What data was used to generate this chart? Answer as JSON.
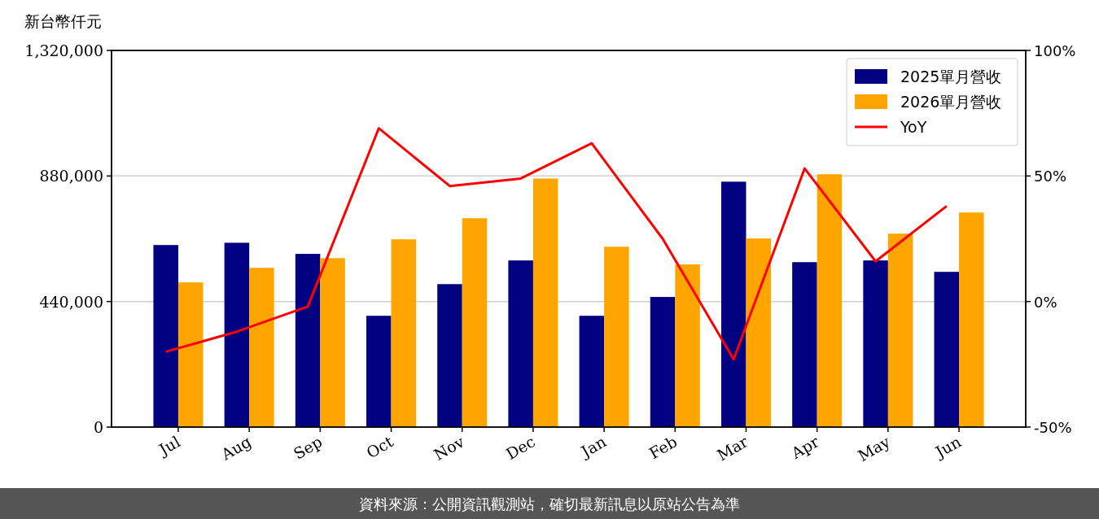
{
  "chart_data": {
    "type": "bar",
    "ylabel": "新台幣仟元",
    "categories": [
      "Jul",
      "Aug",
      "Sep",
      "Oct",
      "Nov",
      "Dec",
      "Jan",
      "Feb",
      "Mar",
      "Apr",
      "May",
      "Jun"
    ],
    "series": [
      {
        "name": "2025單月營收",
        "color": "#000080",
        "values": [
          638000,
          646000,
          607000,
          390000,
          501000,
          584000,
          390000,
          456000,
          860000,
          578000,
          584000,
          544000
        ]
      },
      {
        "name": "2026單月營收",
        "color": "#ffa500",
        "values": [
          507000,
          558000,
          592000,
          658000,
          732000,
          871000,
          632000,
          570000,
          661000,
          886000,
          678000,
          752000
        ]
      },
      {
        "name": "YoY",
        "type": "line",
        "axis": "y2",
        "color": "#ff0000",
        "values": [
          -20,
          -12,
          -2,
          69,
          46,
          49,
          63,
          25,
          -23,
          53,
          16,
          38
        ]
      }
    ],
    "ylim": [
      0,
      1320000
    ],
    "yticks": [
      {
        "value": 0,
        "label": "0"
      },
      {
        "value": 440000,
        "label": "440,000"
      },
      {
        "value": 880000,
        "label": "880,000"
      },
      {
        "value": 1320000,
        "label": "1,320,000"
      }
    ],
    "y2lim": [
      -50,
      100
    ],
    "y2ticks": [
      {
        "value": -50,
        "label": "-50%"
      },
      {
        "value": 0,
        "label": "0%"
      },
      {
        "value": 50,
        "label": "50%"
      },
      {
        "value": 100,
        "label": "100%"
      }
    ],
    "grid": "y",
    "legend": "top right",
    "annotations": [
      "資料來源：公開資訊觀測站，確切最新訊息以原站公告為準"
    ]
  }
}
